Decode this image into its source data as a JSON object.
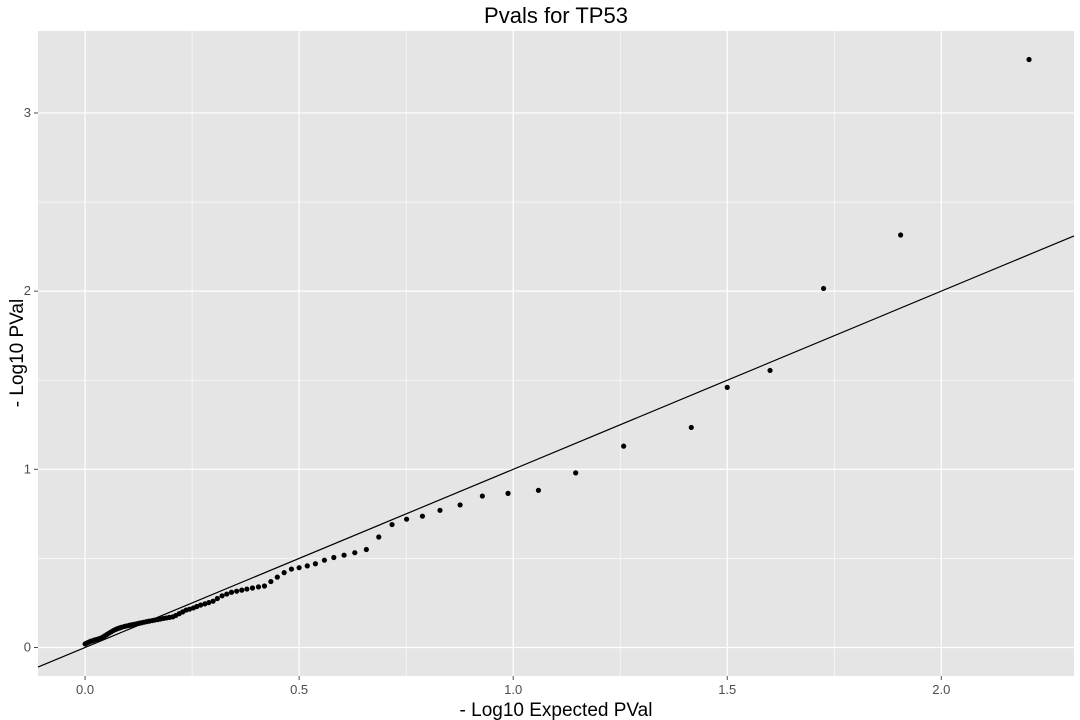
{
  "chart_data": {
    "type": "scatter",
    "title": "Pvals for TP53",
    "xlabel": "- Log10 Expected PVal",
    "ylabel": "- Log10 PVal",
    "xlim": [
      -0.11,
      2.31
    ],
    "ylim": [
      -0.16,
      3.46
    ],
    "x_ticks": [
      0.0,
      0.5,
      1.0,
      1.5,
      2.0
    ],
    "x_tick_labels": [
      "0.0",
      "0.5",
      "1.0",
      "1.5",
      "2.0"
    ],
    "y_ticks": [
      0,
      1,
      2,
      3
    ],
    "y_tick_labels": [
      "0",
      "1",
      "2",
      "3"
    ],
    "reference_line": {
      "slope": 1,
      "intercept": 0
    },
    "colors": {
      "panel": "#e5e5e5",
      "grid": "#ffffff",
      "points": "#000000",
      "line": "#000000",
      "ticks": "#4d4d4d"
    },
    "series": [
      {
        "name": "TP53",
        "points": [
          [
            0.0,
            0.02
          ],
          [
            0.004,
            0.025
          ],
          [
            0.009,
            0.03
          ],
          [
            0.013,
            0.035
          ],
          [
            0.018,
            0.038
          ],
          [
            0.022,
            0.042
          ],
          [
            0.027,
            0.045
          ],
          [
            0.031,
            0.048
          ],
          [
            0.036,
            0.052
          ],
          [
            0.041,
            0.058
          ],
          [
            0.046,
            0.065
          ],
          [
            0.051,
            0.073
          ],
          [
            0.056,
            0.081
          ],
          [
            0.061,
            0.088
          ],
          [
            0.066,
            0.095
          ],
          [
            0.071,
            0.101
          ],
          [
            0.076,
            0.106
          ],
          [
            0.081,
            0.11
          ],
          [
            0.086,
            0.114
          ],
          [
            0.092,
            0.118
          ],
          [
            0.097,
            0.121
          ],
          [
            0.103,
            0.124
          ],
          [
            0.108,
            0.127
          ],
          [
            0.114,
            0.13
          ],
          [
            0.12,
            0.133
          ],
          [
            0.126,
            0.136
          ],
          [
            0.132,
            0.139
          ],
          [
            0.138,
            0.142
          ],
          [
            0.144,
            0.145
          ],
          [
            0.15,
            0.148
          ],
          [
            0.157,
            0.151
          ],
          [
            0.163,
            0.154
          ],
          [
            0.17,
            0.157
          ],
          [
            0.176,
            0.16
          ],
          [
            0.183,
            0.163
          ],
          [
            0.19,
            0.166
          ],
          [
            0.197,
            0.169
          ],
          [
            0.205,
            0.172
          ],
          [
            0.212,
            0.18
          ],
          [
            0.22,
            0.19
          ],
          [
            0.228,
            0.2
          ],
          [
            0.236,
            0.21
          ],
          [
            0.244,
            0.215
          ],
          [
            0.253,
            0.222
          ],
          [
            0.261,
            0.23
          ],
          [
            0.27,
            0.238
          ],
          [
            0.28,
            0.245
          ],
          [
            0.289,
            0.252
          ],
          [
            0.299,
            0.26
          ],
          [
            0.309,
            0.275
          ],
          [
            0.32,
            0.29
          ],
          [
            0.331,
            0.3
          ],
          [
            0.342,
            0.31
          ],
          [
            0.354,
            0.316
          ],
          [
            0.366,
            0.322
          ],
          [
            0.378,
            0.328
          ],
          [
            0.391,
            0.334
          ],
          [
            0.405,
            0.34
          ],
          [
            0.419,
            0.345
          ],
          [
            0.434,
            0.37
          ],
          [
            0.449,
            0.395
          ],
          [
            0.465,
            0.42
          ],
          [
            0.482,
            0.44
          ],
          [
            0.5,
            0.448
          ],
          [
            0.519,
            0.458
          ],
          [
            0.538,
            0.47
          ],
          [
            0.559,
            0.49
          ],
          [
            0.581,
            0.505
          ],
          [
            0.605,
            0.518
          ],
          [
            0.63,
            0.532
          ],
          [
            0.657,
            0.55
          ],
          [
            0.686,
            0.62
          ],
          [
            0.717,
            0.69
          ],
          [
            0.751,
            0.72
          ],
          [
            0.788,
            0.737
          ],
          [
            0.829,
            0.77
          ],
          [
            0.876,
            0.8
          ],
          [
            0.928,
            0.85
          ],
          [
            0.988,
            0.865
          ],
          [
            1.059,
            0.882
          ],
          [
            1.146,
            0.98
          ],
          [
            1.258,
            1.13
          ],
          [
            1.416,
            1.235
          ],
          [
            1.5,
            1.46
          ],
          [
            1.6,
            1.555
          ],
          [
            1.725,
            2.015
          ],
          [
            1.905,
            2.315
          ],
          [
            2.205,
            3.3
          ]
        ]
      }
    ]
  }
}
